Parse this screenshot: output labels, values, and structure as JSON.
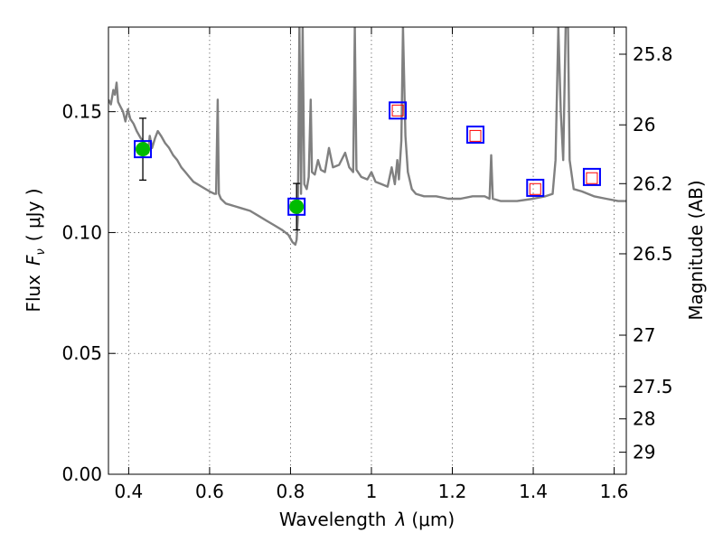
{
  "colors": {
    "spectrum": "#808080",
    "detection_fill": "#00bb00",
    "model_box": "#0000ff",
    "upper_limit": "#ff0000",
    "errorbar": "#000000"
  },
  "chart_data": {
    "type": "line",
    "title": "",
    "xlabel_prefix": "Wavelength",
    "xlabel_lambda": "λ",
    "xlabel_unit": "(μm)",
    "ylabel_prefix": "Flux",
    "ylabel_symbol": "F",
    "ylabel_sub": "ν",
    "ylabel_unit": "( μJy )",
    "y2label": "Magnitude (AB)",
    "xlim": [
      0.35,
      1.63
    ],
    "ylim": [
      0.0,
      0.185
    ],
    "grid": true,
    "x_ticks": [
      {
        "value": 0.4,
        "label": "0.4"
      },
      {
        "value": 0.6,
        "label": "0.6"
      },
      {
        "value": 0.8,
        "label": "0.8"
      },
      {
        "value": 1.0,
        "label": "1"
      },
      {
        "value": 1.2,
        "label": "1.2"
      },
      {
        "value": 1.4,
        "label": "1.4"
      },
      {
        "value": 1.6,
        "label": "1.6"
      }
    ],
    "y_ticks": [
      {
        "value": 0.0,
        "label": "0.00"
      },
      {
        "value": 0.05,
        "label": "0.05"
      },
      {
        "value": 0.1,
        "label": "0.10"
      },
      {
        "value": 0.15,
        "label": "0.15"
      }
    ],
    "y2_ticks": [
      {
        "mag": 25.8,
        "label": "25.8"
      },
      {
        "mag": 26.0,
        "label": "26"
      },
      {
        "mag": 26.2,
        "label": "26.2"
      },
      {
        "mag": 26.5,
        "label": "26.5"
      },
      {
        "mag": 27.0,
        "label": "27"
      },
      {
        "mag": 27.5,
        "label": "27.5"
      },
      {
        "mag": 28.0,
        "label": "28"
      },
      {
        "mag": 29.0,
        "label": "29"
      }
    ],
    "spectrum": [
      [
        0.35,
        0.155
      ],
      [
        0.356,
        0.153
      ],
      [
        0.362,
        0.159
      ],
      [
        0.366,
        0.157
      ],
      [
        0.37,
        0.162
      ],
      [
        0.374,
        0.154
      ],
      [
        0.38,
        0.152
      ],
      [
        0.386,
        0.15
      ],
      [
        0.392,
        0.146
      ],
      [
        0.398,
        0.151
      ],
      [
        0.404,
        0.147
      ],
      [
        0.412,
        0.145
      ],
      [
        0.42,
        0.142
      ],
      [
        0.43,
        0.139
      ],
      [
        0.44,
        0.137
      ],
      [
        0.448,
        0.133
      ],
      [
        0.452,
        0.14
      ],
      [
        0.458,
        0.135
      ],
      [
        0.465,
        0.139
      ],
      [
        0.472,
        0.142
      ],
      [
        0.48,
        0.14
      ],
      [
        0.49,
        0.137
      ],
      [
        0.5,
        0.135
      ],
      [
        0.51,
        0.132
      ],
      [
        0.52,
        0.13
      ],
      [
        0.53,
        0.127
      ],
      [
        0.54,
        0.125
      ],
      [
        0.55,
        0.123
      ],
      [
        0.56,
        0.121
      ],
      [
        0.58,
        0.119
      ],
      [
        0.6,
        0.117
      ],
      [
        0.612,
        0.116
      ],
      [
        0.616,
        0.116
      ],
      [
        0.62,
        0.155
      ],
      [
        0.623,
        0.116
      ],
      [
        0.628,
        0.114
      ],
      [
        0.64,
        0.112
      ],
      [
        0.66,
        0.111
      ],
      [
        0.68,
        0.11
      ],
      [
        0.7,
        0.109
      ],
      [
        0.72,
        0.107
      ],
      [
        0.74,
        0.105
      ],
      [
        0.76,
        0.103
      ],
      [
        0.78,
        0.101
      ],
      [
        0.795,
        0.099
      ],
      [
        0.805,
        0.096
      ],
      [
        0.812,
        0.095
      ],
      [
        0.815,
        0.097
      ],
      [
        0.818,
        0.105
      ],
      [
        0.822,
        0.185
      ],
      [
        0.826,
        0.116
      ],
      [
        0.83,
        0.185
      ],
      [
        0.834,
        0.12
      ],
      [
        0.84,
        0.118
      ],
      [
        0.845,
        0.123
      ],
      [
        0.85,
        0.155
      ],
      [
        0.853,
        0.125
      ],
      [
        0.86,
        0.124
      ],
      [
        0.868,
        0.13
      ],
      [
        0.875,
        0.126
      ],
      [
        0.885,
        0.125
      ],
      [
        0.895,
        0.135
      ],
      [
        0.905,
        0.127
      ],
      [
        0.92,
        0.128
      ],
      [
        0.935,
        0.133
      ],
      [
        0.945,
        0.127
      ],
      [
        0.955,
        0.125
      ],
      [
        0.959,
        0.185
      ],
      [
        0.963,
        0.126
      ],
      [
        0.975,
        0.123
      ],
      [
        0.99,
        0.122
      ],
      [
        1.0,
        0.125
      ],
      [
        1.01,
        0.121
      ],
      [
        1.025,
        0.12
      ],
      [
        1.04,
        0.119
      ],
      [
        1.05,
        0.127
      ],
      [
        1.058,
        0.12
      ],
      [
        1.064,
        0.13
      ],
      [
        1.068,
        0.122
      ],
      [
        1.074,
        0.138
      ],
      [
        1.078,
        0.185
      ],
      [
        1.084,
        0.14
      ],
      [
        1.09,
        0.125
      ],
      [
        1.1,
        0.118
      ],
      [
        1.11,
        0.116
      ],
      [
        1.13,
        0.115
      ],
      [
        1.16,
        0.115
      ],
      [
        1.19,
        0.114
      ],
      [
        1.22,
        0.114
      ],
      [
        1.25,
        0.115
      ],
      [
        1.28,
        0.115
      ],
      [
        1.292,
        0.114
      ],
      [
        1.296,
        0.132
      ],
      [
        1.3,
        0.114
      ],
      [
        1.32,
        0.113
      ],
      [
        1.36,
        0.113
      ],
      [
        1.4,
        0.114
      ],
      [
        1.43,
        0.115
      ],
      [
        1.448,
        0.116
      ],
      [
        1.455,
        0.13
      ],
      [
        1.462,
        0.185
      ],
      [
        1.468,
        0.15
      ],
      [
        1.474,
        0.13
      ],
      [
        1.48,
        0.185
      ],
      [
        1.486,
        0.185
      ],
      [
        1.49,
        0.13
      ],
      [
        1.5,
        0.118
      ],
      [
        1.52,
        0.117
      ],
      [
        1.55,
        0.115
      ],
      [
        1.58,
        0.114
      ],
      [
        1.61,
        0.113
      ],
      [
        1.63,
        0.113
      ]
    ],
    "detections": [
      {
        "x": 0.435,
        "y": 0.1345,
        "err": 0.0128,
        "model": 0.1345
      },
      {
        "x": 0.815,
        "y": 0.1107,
        "err": 0.0096,
        "model": 0.1107
      }
    ],
    "upper_limits": [
      {
        "x": 1.065,
        "y": 0.1505,
        "model": 0.1505
      },
      {
        "x": 1.257,
        "y": 0.14,
        "model": 0.1405
      },
      {
        "x": 1.405,
        "y": 0.118,
        "model": 0.1185
      },
      {
        "x": 1.545,
        "y": 0.1225,
        "model": 0.123
      }
    ]
  }
}
